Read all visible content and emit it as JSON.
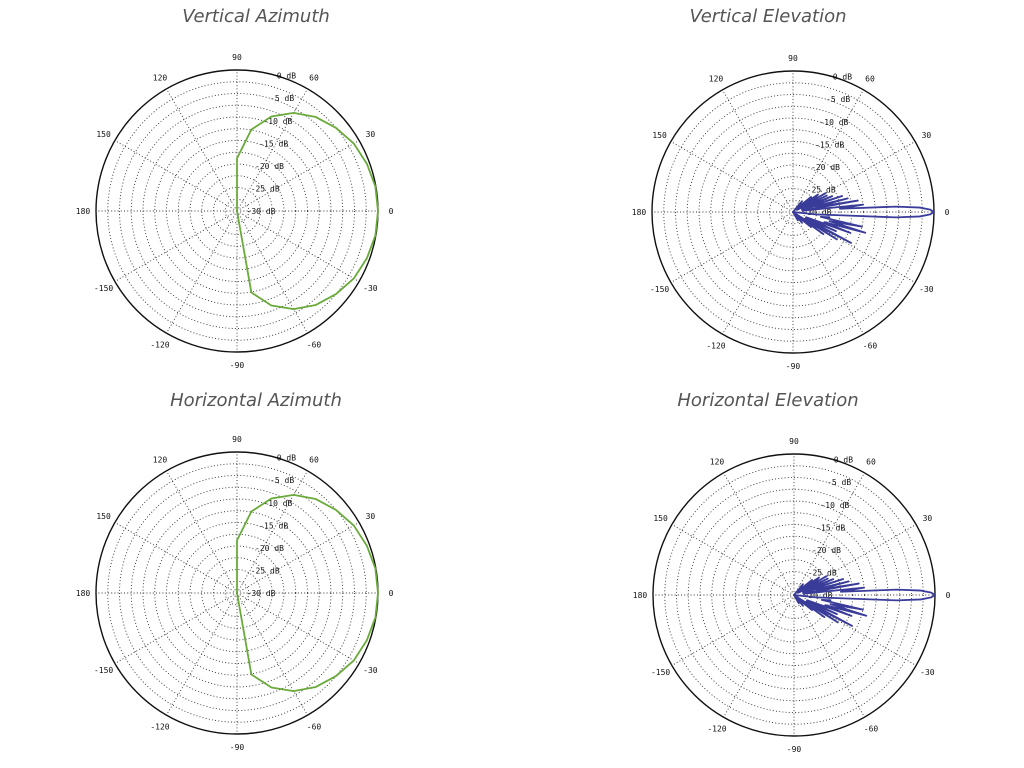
{
  "panels": [
    {
      "title": "Vertical Azimuth"
    },
    {
      "title": "Vertical Elevation"
    },
    {
      "title": "Horizontal Azimuth"
    },
    {
      "title": "Horizontal Elevation"
    }
  ],
  "colors": {
    "azimuth_trace": "#6aaa3a",
    "elevation_trace": "#3a3c9a",
    "grid": "#333333"
  },
  "chart_data": [
    {
      "type": "polar",
      "title": "Vertical Azimuth",
      "radial_unit": "dB",
      "rlim": [
        -30,
        0
      ],
      "radial_ticks": [
        "0 dB",
        "-5 dB",
        "-10 dB",
        "-15 dB",
        "-20 dB",
        "-25 dB",
        "-30 dB"
      ],
      "angular_ticks": [
        "0",
        "30",
        "60",
        "90",
        "120",
        "150",
        "180",
        "-150",
        "-120",
        "-90",
        "-60",
        "-30"
      ],
      "grid": true,
      "series": [
        {
          "color": "#6aaa3a",
          "theta": [
            0,
            10,
            20,
            30,
            40,
            50,
            60,
            70,
            80,
            90,
            100,
            110,
            120,
            130,
            140,
            150,
            160,
            170,
            180,
            190,
            200,
            210,
            220,
            230,
            240,
            250,
            260,
            270,
            280,
            290,
            300,
            310,
            320,
            330,
            340,
            350,
            360
          ],
          "r": [
            0,
            -0.1,
            -0.6,
            -1.3,
            -2.5,
            -3.9,
            -5.9,
            -8.6,
            -12.4,
            -18.8,
            -30,
            -30,
            -30,
            -30,
            -30,
            -30,
            -30,
            -30,
            -30,
            -30,
            -30,
            -30,
            -30,
            -30,
            -30,
            -30,
            -30,
            -30,
            -12.4,
            -8.6,
            -5.9,
            -3.9,
            -2.5,
            -1.3,
            -0.6,
            -0.1,
            0
          ]
        }
      ]
    },
    {
      "type": "polar",
      "title": "Vertical Elevation",
      "radial_unit": "dB",
      "rlim": [
        -30,
        0
      ],
      "radial_ticks": [
        "0 dB",
        "-5 dB",
        "-10 dB",
        "-15 dB",
        "-20 dB",
        "-25 dB",
        "-30 dB"
      ],
      "angular_ticks": [
        "0",
        "30",
        "60",
        "90",
        "120",
        "150",
        "180",
        "-150",
        "-120",
        "-90",
        "-60",
        "-30"
      ],
      "grid": true,
      "series": [
        {
          "color": "#3a3c9a",
          "theta": [
            -8,
            -6,
            -4,
            -3,
            -2,
            -1,
            0,
            1,
            2,
            3,
            4,
            6,
            8,
            10,
            12,
            14,
            16,
            18,
            20,
            22,
            24,
            26,
            28,
            30,
            32,
            34,
            35,
            36,
            38,
            40,
            45,
            50,
            60,
            70,
            90,
            180,
            270,
            295,
            300,
            305,
            310,
            315,
            320,
            322,
            324,
            326,
            328,
            330,
            332,
            334,
            336,
            338,
            340,
            342,
            344,
            346,
            348,
            350,
            352
          ],
          "r": [
            -30,
            -25,
            -20,
            -8,
            -3,
            -0.8,
            0,
            -0.8,
            -3,
            -8,
            -20,
            -15,
            -28,
            -16,
            -25,
            -18,
            -28,
            -19,
            -27,
            -21,
            -28,
            -22,
            -29,
            -22,
            -28,
            -24,
            -23.5,
            -26,
            -29,
            -25,
            -29,
            -27,
            -30,
            -30,
            -30,
            -30,
            -30,
            -30,
            -28,
            -30,
            -27,
            -29,
            -25,
            -28,
            -22,
            -29,
            -19,
            -26,
            -16,
            -27,
            -20,
            -27,
            -17,
            -23,
            -14,
            -22,
            -15,
            -24,
            -22
          ]
        }
      ]
    },
    {
      "type": "polar",
      "title": "Horizontal Azimuth",
      "radial_unit": "dB",
      "rlim": [
        -30,
        0
      ],
      "radial_ticks": [
        "0 dB",
        "-5 dB",
        "-10 dB",
        "-15 dB",
        "-20 dB",
        "-25 dB",
        "-30 dB"
      ],
      "angular_ticks": [
        "0",
        "30",
        "60",
        "90",
        "120",
        "150",
        "180",
        "-150",
        "-120",
        "-90",
        "-60",
        "-30"
      ],
      "grid": true,
      "series": [
        {
          "color": "#6aaa3a",
          "theta": [
            0,
            10,
            20,
            30,
            40,
            50,
            60,
            70,
            80,
            90,
            100,
            110,
            120,
            130,
            140,
            150,
            160,
            170,
            180,
            190,
            200,
            210,
            220,
            230,
            240,
            250,
            260,
            270,
            280,
            290,
            300,
            310,
            320,
            330,
            340,
            350,
            360
          ],
          "r": [
            0,
            -0.1,
            -0.6,
            -1.3,
            -2.5,
            -3.9,
            -5.9,
            -8.6,
            -12.4,
            -18.8,
            -30,
            -30,
            -30,
            -30,
            -30,
            -30,
            -30,
            -30,
            -30,
            -30,
            -30,
            -30,
            -30,
            -30,
            -30,
            -30,
            -30,
            -30,
            -12.4,
            -8.6,
            -5.9,
            -3.9,
            -2.5,
            -1.3,
            -0.6,
            -0.1,
            0
          ]
        }
      ]
    },
    {
      "type": "polar",
      "title": "Horizontal Elevation",
      "radial_unit": "dB",
      "rlim": [
        -30,
        0
      ],
      "radial_ticks": [
        "0 dB",
        "-5 dB",
        "-10 dB",
        "-15 dB",
        "-20 dB",
        "-25 dB",
        "-30 dB"
      ],
      "angular_ticks": [
        "0",
        "30",
        "60",
        "90",
        "120",
        "150",
        "180",
        "-150",
        "-120",
        "-90",
        "-60",
        "-30"
      ],
      "grid": true,
      "series": [
        {
          "color": "#3a3c9a",
          "theta": [
            -8,
            -6,
            -4,
            -3,
            -2,
            -1,
            0,
            1,
            2,
            3,
            4,
            6,
            8,
            10,
            12,
            14,
            16,
            18,
            20,
            22,
            24,
            26,
            28,
            30,
            32,
            34,
            35,
            36,
            38,
            40,
            45,
            50,
            60,
            70,
            90,
            180,
            270,
            295,
            300,
            305,
            310,
            315,
            320,
            322,
            324,
            326,
            328,
            330,
            332,
            334,
            336,
            338,
            340,
            342,
            344,
            346,
            348,
            350,
            352
          ],
          "r": [
            -30,
            -25,
            -20,
            -8,
            -3,
            -0.8,
            0,
            -0.8,
            -3,
            -8,
            -20,
            -15,
            -28,
            -16,
            -25,
            -18,
            -28,
            -19,
            -27,
            -21,
            -28,
            -22,
            -29,
            -22,
            -28,
            -24,
            -23.5,
            -26,
            -29,
            -25,
            -29,
            -27,
            -30,
            -30,
            -30,
            -30,
            -30,
            -30,
            -28,
            -30,
            -27,
            -29,
            -25,
            -28,
            -22,
            -29,
            -19,
            -26,
            -16,
            -27,
            -20,
            -27,
            -17,
            -23,
            -14,
            -22,
            -15,
            -24,
            -22
          ]
        }
      ]
    }
  ]
}
